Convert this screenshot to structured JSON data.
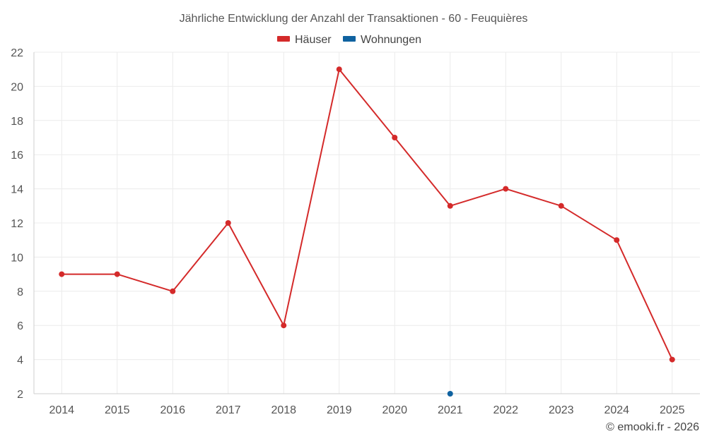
{
  "chart_data": {
    "type": "line",
    "title": "Jährliche Entwicklung der Anzahl der Transaktionen - 60 - Feuquières",
    "categories": [
      "2014",
      "2015",
      "2016",
      "2017",
      "2018",
      "2019",
      "2020",
      "2021",
      "2022",
      "2023",
      "2024",
      "2025"
    ],
    "series": [
      {
        "name": "Häuser",
        "color": "#d42a2a",
        "values": [
          9,
          9,
          8,
          12,
          6,
          21,
          17,
          13,
          14,
          13,
          11,
          4
        ]
      },
      {
        "name": "Wohnungen",
        "color": "#0f62a0",
        "values": [
          null,
          null,
          null,
          null,
          null,
          null,
          null,
          2,
          null,
          null,
          null,
          null
        ]
      }
    ],
    "ylim": [
      2,
      22
    ],
    "yticks": [
      2,
      4,
      6,
      8,
      10,
      12,
      14,
      16,
      18,
      20,
      22
    ],
    "ytick_labels": [
      "2",
      "4",
      "6",
      "8",
      "10",
      "12",
      "14",
      "16",
      "18",
      "20",
      "22"
    ],
    "grid": true,
    "legend": "top-center",
    "xlabel": "",
    "ylabel": ""
  },
  "credit": "© emooki.fr - 2026"
}
